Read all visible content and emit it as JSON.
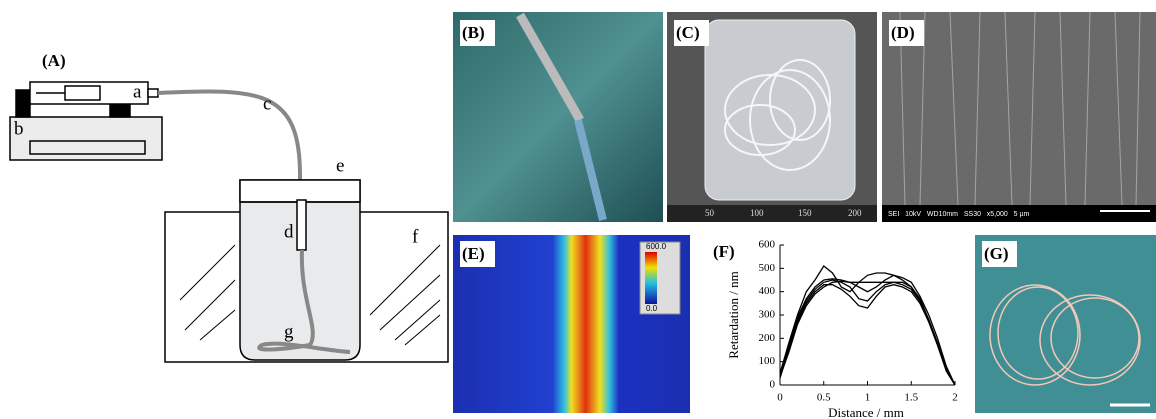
{
  "panels": {
    "A": {
      "label": "(A)",
      "parts": [
        "a",
        "b",
        "c",
        "d",
        "e",
        "f",
        "g"
      ]
    },
    "B": {
      "label": "(B)"
    },
    "C": {
      "label": "(C)",
      "ruler": [
        "50",
        "100",
        "150",
        "200"
      ]
    },
    "D": {
      "label": "(D)",
      "info": "SEI   10kV   WD10mm   SS30   x5,000   5 µm"
    },
    "E": {
      "label": "(E)",
      "scale_max": "600.0",
      "scale_min": "0.0"
    },
    "G": {
      "label": "(G)"
    }
  },
  "chart_data": {
    "type": "line",
    "title": "(F)",
    "xlabel": "Distance / mm",
    "ylabel": "Retardation / nm",
    "x": [
      0,
      0.1,
      0.2,
      0.3,
      0.4,
      0.5,
      0.6,
      0.7,
      0.8,
      0.9,
      1,
      1.1,
      1.2,
      1.3,
      1.4,
      1.5,
      1.6,
      1.7,
      1.8,
      1.9,
      2
    ],
    "series": [
      {
        "color": "#000000",
        "values": [
          50,
          180,
          300,
          400,
          450,
          510,
          480,
          420,
          400,
          440,
          470,
          480,
          480,
          470,
          460,
          440,
          380,
          300,
          200,
          80,
          0
        ]
      },
      {
        "color": "#000000",
        "values": [
          40,
          160,
          280,
          360,
          410,
          440,
          450,
          440,
          420,
          370,
          360,
          400,
          430,
          440,
          440,
          420,
          370,
          280,
          180,
          70,
          0
        ]
      },
      {
        "color": "#000000",
        "values": [
          30,
          150,
          270,
          350,
          400,
          430,
          430,
          410,
          380,
          340,
          330,
          380,
          420,
          430,
          420,
          400,
          350,
          270,
          170,
          60,
          0
        ]
      },
      {
        "color": "#000000",
        "values": [
          45,
          170,
          290,
          370,
          420,
          450,
          455,
          450,
          440,
          420,
          400,
          420,
          450,
          470,
          450,
          420,
          360,
          280,
          180,
          70,
          0
        ]
      },
      {
        "color": "#000000",
        "values": [
          35,
          140,
          260,
          340,
          390,
          420,
          440,
          445,
          440,
          440,
          440,
          440,
          440,
          440,
          430,
          410,
          360,
          270,
          180,
          60,
          0
        ]
      }
    ],
    "xlim": [
      0,
      2
    ],
    "xticks": [
      0,
      0.5,
      1,
      1.5,
      2
    ],
    "ylim": [
      0,
      600
    ],
    "yticks": [
      0,
      100,
      200,
      300,
      400,
      500,
      600
    ]
  }
}
